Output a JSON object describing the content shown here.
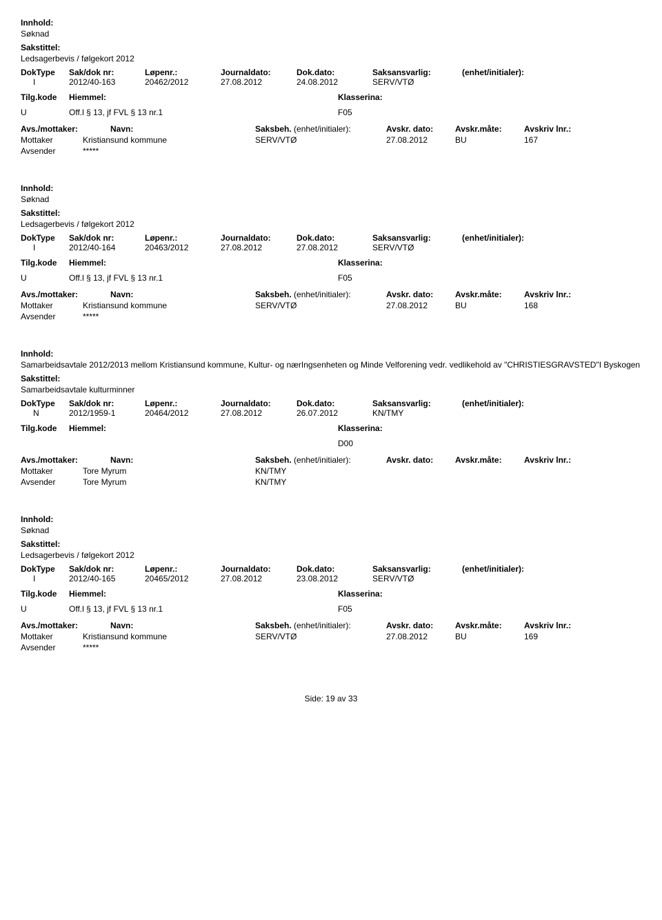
{
  "labels": {
    "innhold": "Innhold:",
    "sakstittel": "Sakstittel:",
    "doktype": "DokType",
    "sakdoknr": "Sak/dok nr:",
    "lopenr": "Løpenr.:",
    "journaldato": "Journaldato:",
    "dokdato": "Dok.dato:",
    "saksansvarlig": "Saksansvarlig:",
    "enhet_init": "(enhet/initialer):",
    "tilgkode": "Tilg.kode",
    "hjemmel": "Hiemmel:",
    "klassering": "Klasserina:",
    "avsmottaker": "Avs./mottaker:",
    "navn": "Navn:",
    "saksbeh": "Saksbeh.",
    "enhet_init2": "(enhet/initialer):",
    "avskr_dato": "Avskr. dato:",
    "avskr_mate": "Avskr.måte:",
    "avskriv_lnr": "Avskriv lnr.:",
    "mottaker": "Mottaker",
    "avsender": "Avsender"
  },
  "entries": [
    {
      "innhold": "Søknad",
      "sakstittel": "Ledsagerbevis / følgekort 2012",
      "doktype": "I",
      "sakdok": "2012/40-163",
      "lopenr": "20462/2012",
      "jdato": "27.08.2012",
      "ddato": "24.08.2012",
      "saksans": "SERV/VTØ",
      "tilgkode": "U",
      "hjemmel": "Off.l § 13, jf FVL § 13 nr.1",
      "klass": "F05",
      "parties": [
        {
          "role": "Mottaker",
          "navn": "Kristiansund kommune",
          "saksbeh": "SERV/VTØ",
          "ad": "27.08.2012",
          "am": "BU",
          "al": "167"
        },
        {
          "role": "Avsender",
          "navn": "*****",
          "saksbeh": "",
          "ad": "",
          "am": "",
          "al": ""
        }
      ]
    },
    {
      "innhold": "Søknad",
      "sakstittel": "Ledsagerbevis / følgekort 2012",
      "doktype": "I",
      "sakdok": "2012/40-164",
      "lopenr": "20463/2012",
      "jdato": "27.08.2012",
      "ddato": "27.08.2012",
      "saksans": "SERV/VTØ",
      "tilgkode": "U",
      "hjemmel": "Off.l § 13, jf FVL § 13 nr.1",
      "klass": "F05",
      "parties": [
        {
          "role": "Mottaker",
          "navn": "Kristiansund kommune",
          "saksbeh": "SERV/VTØ",
          "ad": "27.08.2012",
          "am": "BU",
          "al": "168"
        },
        {
          "role": "Avsender",
          "navn": "*****",
          "saksbeh": "",
          "ad": "",
          "am": "",
          "al": ""
        }
      ]
    },
    {
      "innhold": "Samarbeidsavtale 2012/2013 mellom Kristiansund kommune, Kultur- og nærIngsenheten og Minde Velforening vedr. vedlikehold av \"CHRISTIESGRAVSTED\"I Byskogen",
      "sakstittel": "Samarbeidsavtale kulturminner",
      "doktype": "N",
      "sakdok": "2012/1959-1",
      "lopenr": "20464/2012",
      "jdato": "27.08.2012",
      "ddato": "26.07.2012",
      "saksans": "KN/TMY",
      "tilgkode": "",
      "hjemmel": "",
      "klass": "D00",
      "parties": [
        {
          "role": "Mottaker",
          "navn": "Tore Myrum",
          "saksbeh": "KN/TMY",
          "ad": "",
          "am": "",
          "al": ""
        },
        {
          "role": "Avsender",
          "navn": "Tore Myrum",
          "saksbeh": "KN/TMY",
          "ad": "",
          "am": "",
          "al": ""
        }
      ]
    },
    {
      "innhold": "Søknad",
      "sakstittel": "Ledsagerbevis / følgekort 2012",
      "doktype": "I",
      "sakdok": "2012/40-165",
      "lopenr": "20465/2012",
      "jdato": "27.08.2012",
      "ddato": "23.08.2012",
      "saksans": "SERV/VTØ",
      "tilgkode": "U",
      "hjemmel": "Off.l § 13, jf FVL § 13 nr.1",
      "klass": "F05",
      "parties": [
        {
          "role": "Mottaker",
          "navn": "Kristiansund kommune",
          "saksbeh": "SERV/VTØ",
          "ad": "27.08.2012",
          "am": "BU",
          "al": "169"
        },
        {
          "role": "Avsender",
          "navn": "*****",
          "saksbeh": "",
          "ad": "",
          "am": "",
          "al": ""
        }
      ]
    }
  ],
  "footer": {
    "side": "Side:",
    "page": "19",
    "av": "av",
    "total": "33"
  }
}
